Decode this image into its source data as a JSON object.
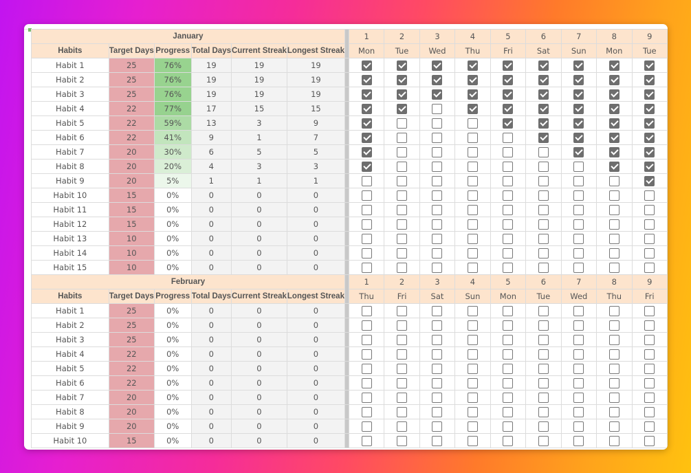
{
  "colors": {
    "header_bg": "#fde4cd",
    "target_bg": "#e6a8ac",
    "stat_bg": "#f3f3f3",
    "progress_green": "#8fcf86",
    "checkbox_checked": "#6e6e6e"
  },
  "columns": {
    "habits": "Habits",
    "target_days": "Target Days",
    "progress": "Progress",
    "total_days": "Total Days",
    "current_streak": "Current Streak",
    "longest_streak": "Longest Streak"
  },
  "months": [
    {
      "name": "January",
      "days": [
        {
          "num": "1",
          "name": "Mon"
        },
        {
          "num": "2",
          "name": "Tue"
        },
        {
          "num": "3",
          "name": "Wed"
        },
        {
          "num": "4",
          "name": "Thu"
        },
        {
          "num": "5",
          "name": "Fri"
        },
        {
          "num": "6",
          "name": "Sat"
        },
        {
          "num": "7",
          "name": "Sun"
        },
        {
          "num": "8",
          "name": "Mon"
        },
        {
          "num": "9",
          "name": "Tue"
        }
      ],
      "rows": [
        {
          "habit": "Habit 1",
          "target": "25",
          "progress": "76%",
          "pct": 0.76,
          "total": "19",
          "current": "19",
          "longest": "19",
          "checks": [
            1,
            1,
            1,
            1,
            1,
            1,
            1,
            1,
            1
          ]
        },
        {
          "habit": "Habit 2",
          "target": "25",
          "progress": "76%",
          "pct": 0.76,
          "total": "19",
          "current": "19",
          "longest": "19",
          "checks": [
            1,
            1,
            1,
            1,
            1,
            1,
            1,
            1,
            1
          ]
        },
        {
          "habit": "Habit 3",
          "target": "25",
          "progress": "76%",
          "pct": 0.76,
          "total": "19",
          "current": "19",
          "longest": "19",
          "checks": [
            1,
            1,
            1,
            1,
            1,
            1,
            1,
            1,
            1
          ]
        },
        {
          "habit": "Habit 4",
          "target": "22",
          "progress": "77%",
          "pct": 0.77,
          "total": "17",
          "current": "15",
          "longest": "15",
          "checks": [
            1,
            1,
            0,
            1,
            1,
            1,
            1,
            1,
            1
          ]
        },
        {
          "habit": "Habit 5",
          "target": "22",
          "progress": "59%",
          "pct": 0.59,
          "total": "13",
          "current": "3",
          "longest": "9",
          "checks": [
            1,
            0,
            0,
            0,
            1,
            1,
            1,
            1,
            1
          ]
        },
        {
          "habit": "Habit 6",
          "target": "22",
          "progress": "41%",
          "pct": 0.41,
          "total": "9",
          "current": "1",
          "longest": "7",
          "checks": [
            1,
            0,
            0,
            0,
            0,
            1,
            1,
            1,
            1
          ]
        },
        {
          "habit": "Habit 7",
          "target": "20",
          "progress": "30%",
          "pct": 0.3,
          "total": "6",
          "current": "5",
          "longest": "5",
          "checks": [
            1,
            0,
            0,
            0,
            0,
            0,
            1,
            1,
            1
          ]
        },
        {
          "habit": "Habit 8",
          "target": "20",
          "progress": "20%",
          "pct": 0.2,
          "total": "4",
          "current": "3",
          "longest": "3",
          "checks": [
            1,
            0,
            0,
            0,
            0,
            0,
            0,
            1,
            1
          ]
        },
        {
          "habit": "Habit 9",
          "target": "20",
          "progress": "5%",
          "pct": 0.05,
          "total": "1",
          "current": "1",
          "longest": "1",
          "checks": [
            0,
            0,
            0,
            0,
            0,
            0,
            0,
            0,
            1
          ]
        },
        {
          "habit": "Habit 10",
          "target": "15",
          "progress": "0%",
          "pct": 0,
          "total": "0",
          "current": "0",
          "longest": "0",
          "checks": [
            0,
            0,
            0,
            0,
            0,
            0,
            0,
            0,
            0
          ]
        },
        {
          "habit": "Habit 11",
          "target": "15",
          "progress": "0%",
          "pct": 0,
          "total": "0",
          "current": "0",
          "longest": "0",
          "checks": [
            0,
            0,
            0,
            0,
            0,
            0,
            0,
            0,
            0
          ]
        },
        {
          "habit": "Habit 12",
          "target": "15",
          "progress": "0%",
          "pct": 0,
          "total": "0",
          "current": "0",
          "longest": "0",
          "checks": [
            0,
            0,
            0,
            0,
            0,
            0,
            0,
            0,
            0
          ]
        },
        {
          "habit": "Habit 13",
          "target": "10",
          "progress": "0%",
          "pct": 0,
          "total": "0",
          "current": "0",
          "longest": "0",
          "checks": [
            0,
            0,
            0,
            0,
            0,
            0,
            0,
            0,
            0
          ]
        },
        {
          "habit": "Habit 14",
          "target": "10",
          "progress": "0%",
          "pct": 0,
          "total": "0",
          "current": "0",
          "longest": "0",
          "checks": [
            0,
            0,
            0,
            0,
            0,
            0,
            0,
            0,
            0
          ]
        },
        {
          "habit": "Habit 15",
          "target": "10",
          "progress": "0%",
          "pct": 0,
          "total": "0",
          "current": "0",
          "longest": "0",
          "checks": [
            0,
            0,
            0,
            0,
            0,
            0,
            0,
            0,
            0
          ]
        }
      ]
    },
    {
      "name": "February",
      "days": [
        {
          "num": "1",
          "name": "Thu"
        },
        {
          "num": "2",
          "name": "Fri"
        },
        {
          "num": "3",
          "name": "Sat"
        },
        {
          "num": "4",
          "name": "Sun"
        },
        {
          "num": "5",
          "name": "Mon"
        },
        {
          "num": "6",
          "name": "Tue"
        },
        {
          "num": "7",
          "name": "Wed"
        },
        {
          "num": "8",
          "name": "Thu"
        },
        {
          "num": "9",
          "name": "Fri"
        }
      ],
      "rows": [
        {
          "habit": "Habit 1",
          "target": "25",
          "progress": "0%",
          "pct": 0,
          "total": "0",
          "current": "0",
          "longest": "0",
          "checks": [
            0,
            0,
            0,
            0,
            0,
            0,
            0,
            0,
            0
          ]
        },
        {
          "habit": "Habit 2",
          "target": "25",
          "progress": "0%",
          "pct": 0,
          "total": "0",
          "current": "0",
          "longest": "0",
          "checks": [
            0,
            0,
            0,
            0,
            0,
            0,
            0,
            0,
            0
          ]
        },
        {
          "habit": "Habit 3",
          "target": "25",
          "progress": "0%",
          "pct": 0,
          "total": "0",
          "current": "0",
          "longest": "0",
          "checks": [
            0,
            0,
            0,
            0,
            0,
            0,
            0,
            0,
            0
          ]
        },
        {
          "habit": "Habit 4",
          "target": "22",
          "progress": "0%",
          "pct": 0,
          "total": "0",
          "current": "0",
          "longest": "0",
          "checks": [
            0,
            0,
            0,
            0,
            0,
            0,
            0,
            0,
            0
          ]
        },
        {
          "habit": "Habit 5",
          "target": "22",
          "progress": "0%",
          "pct": 0,
          "total": "0",
          "current": "0",
          "longest": "0",
          "checks": [
            0,
            0,
            0,
            0,
            0,
            0,
            0,
            0,
            0
          ]
        },
        {
          "habit": "Habit 6",
          "target": "22",
          "progress": "0%",
          "pct": 0,
          "total": "0",
          "current": "0",
          "longest": "0",
          "checks": [
            0,
            0,
            0,
            0,
            0,
            0,
            0,
            0,
            0
          ]
        },
        {
          "habit": "Habit 7",
          "target": "20",
          "progress": "0%",
          "pct": 0,
          "total": "0",
          "current": "0",
          "longest": "0",
          "checks": [
            0,
            0,
            0,
            0,
            0,
            0,
            0,
            0,
            0
          ]
        },
        {
          "habit": "Habit 8",
          "target": "20",
          "progress": "0%",
          "pct": 0,
          "total": "0",
          "current": "0",
          "longest": "0",
          "checks": [
            0,
            0,
            0,
            0,
            0,
            0,
            0,
            0,
            0
          ]
        },
        {
          "habit": "Habit 9",
          "target": "20",
          "progress": "0%",
          "pct": 0,
          "total": "0",
          "current": "0",
          "longest": "0",
          "checks": [
            0,
            0,
            0,
            0,
            0,
            0,
            0,
            0,
            0
          ]
        },
        {
          "habit": "Habit 10",
          "target": "15",
          "progress": "0%",
          "pct": 0,
          "total": "0",
          "current": "0",
          "longest": "0",
          "checks": [
            0,
            0,
            0,
            0,
            0,
            0,
            0,
            0,
            0
          ]
        }
      ]
    }
  ]
}
